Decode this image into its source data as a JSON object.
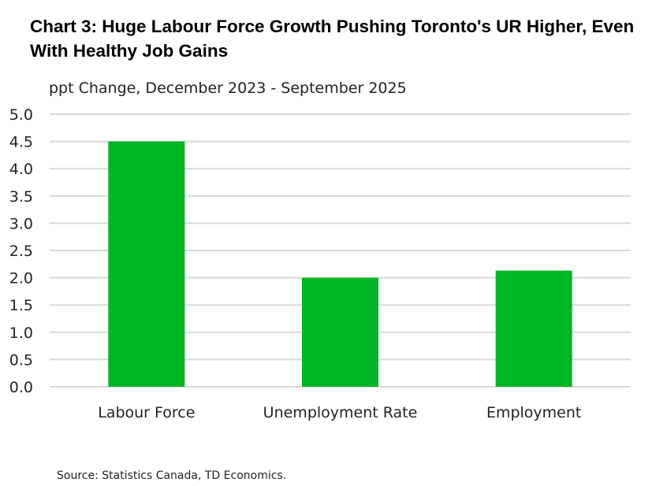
{
  "chart_data": {
    "type": "bar",
    "title": "Chart 3: Huge Labour Force Growth Pushing Toronto's UR Higher, Even With Healthy Job Gains",
    "subtitle": "ppt Change, December 2023 - September 2025",
    "categories": [
      "Labour Force",
      "Unemployment Rate",
      "Employment"
    ],
    "values": [
      4.5,
      2.0,
      2.13
    ],
    "ylim": [
      0,
      5
    ],
    "yticks": [
      "0.0",
      "0.5",
      "1.0",
      "1.5",
      "2.0",
      "2.5",
      "3.0",
      "3.5",
      "4.0",
      "4.5",
      "5.0"
    ],
    "grid": true,
    "color": "#00b624",
    "source": "Source: Statistics Canada, TD Economics."
  }
}
